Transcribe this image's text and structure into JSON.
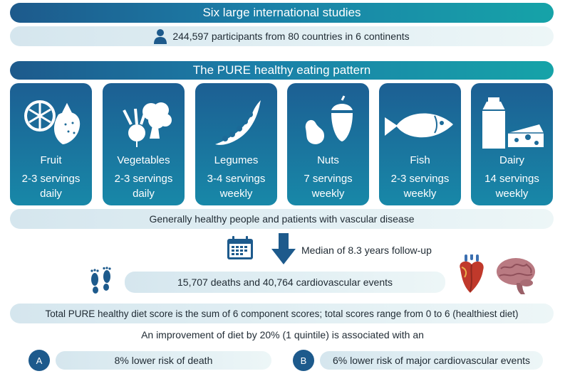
{
  "header": {
    "studies_title": "Six large international studies",
    "participants": "244,597 participants from 80 countries in 6 continents",
    "pattern_title": "The PURE healthy eating pattern"
  },
  "foods": [
    {
      "name": "Fruit",
      "serv1": "2-3 servings",
      "serv2": "daily",
      "icon": "fruit-icon"
    },
    {
      "name": "Vegetables",
      "serv1": "2-3 servings",
      "serv2": "daily",
      "icon": "vegetables-icon"
    },
    {
      "name": "Legumes",
      "serv1": "3-4 servings",
      "serv2": "weekly",
      "icon": "legumes-icon"
    },
    {
      "name": "Nuts",
      "serv1": "7 servings",
      "serv2": "weekly",
      "icon": "nuts-icon"
    },
    {
      "name": "Fish",
      "serv1": "2-3 servings",
      "serv2": "weekly",
      "icon": "fish-icon"
    },
    {
      "name": "Dairy",
      "serv1": "14 servings",
      "serv2": "weekly",
      "icon": "dairy-icon"
    }
  ],
  "population": "Generally healthy people and patients with vascular disease",
  "followup": "Median of 8.3 years follow-up",
  "events": "15,707 deaths and 40,764 cardiovascular events",
  "score": "Total PURE healthy diet score is the sum of 6 component scores; total scores range from 0 to 6 (healthiest diet)",
  "improvement": "An improvement of diet by 20% (1 quintile) is associated with an",
  "outcomes": {
    "a_label": "A",
    "a_text": "8% lower risk of  death",
    "b_label": "B",
    "b_text": "6% lower risk of major cardiovascular events"
  },
  "colors": {
    "dark_blue": "#1d5a8c",
    "teal": "#16a3a8",
    "light_bar": "#e3f0f4"
  }
}
